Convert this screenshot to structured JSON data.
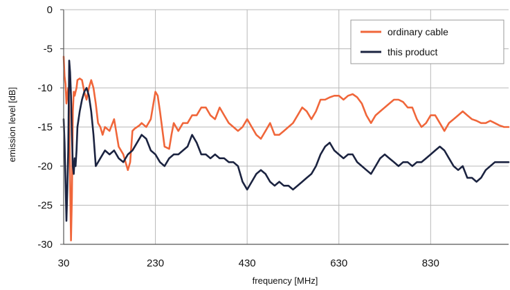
{
  "chart_data": {
    "type": "line",
    "xlabel": "frequency [MHz]",
    "ylabel": "emission level [dB]",
    "xlim": [
      30,
      1000
    ],
    "ylim": [
      -30,
      0
    ],
    "x_ticks": [
      30,
      230,
      430,
      630,
      830
    ],
    "y_ticks": [
      0,
      -5,
      -10,
      -15,
      -20,
      -25,
      -30
    ],
    "grid": true,
    "legend_position": "top-right",
    "series": [
      {
        "name": "ordinary cable",
        "color": "#f0663a",
        "x": [
          30,
          32,
          34,
          36,
          38,
          40,
          42,
          44,
          46,
          48,
          50,
          52,
          54,
          56,
          58,
          60,
          65,
          70,
          75,
          80,
          85,
          90,
          95,
          100,
          105,
          110,
          115,
          120,
          130,
          140,
          150,
          160,
          170,
          175,
          180,
          185,
          190,
          195,
          200,
          210,
          220,
          230,
          235,
          240,
          250,
          260,
          265,
          270,
          280,
          290,
          300,
          310,
          320,
          330,
          340,
          350,
          360,
          370,
          380,
          390,
          400,
          410,
          420,
          430,
          440,
          450,
          460,
          470,
          480,
          490,
          500,
          510,
          520,
          530,
          540,
          550,
          560,
          570,
          580,
          590,
          600,
          610,
          620,
          630,
          640,
          650,
          660,
          670,
          680,
          690,
          700,
          710,
          720,
          730,
          740,
          750,
          760,
          770,
          780,
          790,
          800,
          810,
          820,
          830,
          840,
          850,
          860,
          870,
          880,
          890,
          900,
          910,
          920,
          930,
          940,
          950,
          960,
          970,
          980,
          990,
          1000
        ],
        "y": [
          -6,
          -8.5,
          -9.5,
          -12,
          -11,
          -10,
          -13,
          -22,
          -29.5,
          -24,
          -13,
          -10.5,
          -11,
          -10.5,
          -10,
          -9,
          -8.8,
          -9,
          -10.5,
          -11.5,
          -10,
          -9,
          -10,
          -12,
          -14.5,
          -15,
          -16,
          -15,
          -15.5,
          -14,
          -17.5,
          -18.5,
          -20.5,
          -19.5,
          -15.5,
          -15.2,
          -15,
          -14.8,
          -14.5,
          -15,
          -14,
          -10.5,
          -11,
          -13,
          -17.5,
          -17.8,
          -16,
          -14.5,
          -15.5,
          -14.5,
          -14.5,
          -13.5,
          -13.5,
          -12.5,
          -12.5,
          -13.5,
          -14,
          -12.5,
          -13.5,
          -14.5,
          -15,
          -15.5,
          -15,
          -14,
          -15,
          -16,
          -16.5,
          -15.5,
          -14.5,
          -16,
          -16,
          -15.5,
          -15,
          -14.5,
          -13.5,
          -12.5,
          -13,
          -14,
          -13,
          -11.5,
          -11.5,
          -11.2,
          -11,
          -11,
          -11.5,
          -11,
          -10.8,
          -11.2,
          -12,
          -13.5,
          -14.5,
          -13.5,
          -13,
          -12.5,
          -12,
          -11.5,
          -11.5,
          -11.8,
          -12.5,
          -12.5,
          -14,
          -15,
          -14.5,
          -13.5,
          -13.5,
          -14.5,
          -15.5,
          -14.5,
          -14,
          -13.5,
          -13,
          -13.5,
          -14,
          -14.2,
          -14.5,
          -14.5,
          -14.2,
          -14.5,
          -14.8,
          -15,
          -15
        ]
      },
      {
        "name": "this product",
        "color": "#1b2340",
        "x": [
          30,
          32,
          34,
          36,
          38,
          40,
          42,
          44,
          46,
          48,
          50,
          52,
          54,
          56,
          58,
          60,
          65,
          70,
          75,
          80,
          85,
          90,
          95,
          100,
          110,
          120,
          130,
          140,
          150,
          160,
          170,
          180,
          190,
          200,
          210,
          220,
          230,
          240,
          250,
          260,
          270,
          280,
          290,
          300,
          310,
          320,
          330,
          340,
          350,
          360,
          370,
          380,
          390,
          400,
          410,
          420,
          430,
          440,
          450,
          460,
          470,
          480,
          490,
          500,
          510,
          520,
          530,
          540,
          550,
          560,
          570,
          580,
          590,
          600,
          610,
          620,
          630,
          640,
          650,
          660,
          670,
          680,
          690,
          700,
          710,
          720,
          730,
          740,
          750,
          760,
          770,
          780,
          790,
          800,
          810,
          820,
          830,
          840,
          850,
          860,
          870,
          880,
          890,
          900,
          910,
          920,
          930,
          940,
          950,
          960,
          970,
          980,
          990,
          1000
        ],
        "y": [
          -14,
          -17,
          -22,
          -27,
          -23,
          -18,
          -6.5,
          -8,
          -11,
          -16,
          -20,
          -21,
          -19,
          -20,
          -18,
          -15,
          -13,
          -11.5,
          -10.5,
          -10,
          -11,
          -13,
          -16,
          -20,
          -19,
          -18,
          -18.5,
          -18,
          -19,
          -19.5,
          -18.5,
          -18,
          -17,
          -16,
          -16.5,
          -18,
          -18.5,
          -19.5,
          -20,
          -19,
          -18.5,
          -18.5,
          -18,
          -17.5,
          -16,
          -17,
          -18.5,
          -18.5,
          -19,
          -18.5,
          -19,
          -19,
          -19.5,
          -19.5,
          -20,
          -22,
          -23,
          -22,
          -21,
          -20.5,
          -21,
          -22,
          -22.5,
          -22,
          -22.5,
          -22.5,
          -23,
          -22.5,
          -22,
          -21.5,
          -21,
          -20,
          -18.5,
          -17.5,
          -17,
          -18,
          -18.5,
          -19,
          -18.5,
          -18.5,
          -19.5,
          -20,
          -20.5,
          -21,
          -20,
          -19,
          -18.5,
          -19,
          -19.5,
          -20,
          -19.5,
          -19.5,
          -20,
          -19.5,
          -19.5,
          -19,
          -18.5,
          -18,
          -17.5,
          -18,
          -19,
          -20,
          -20.5,
          -20,
          -21.5,
          -21.5,
          -22,
          -21.5,
          -20.5,
          -20,
          -19.5,
          -19.5,
          -19.5,
          -19.5
        ]
      }
    ]
  }
}
